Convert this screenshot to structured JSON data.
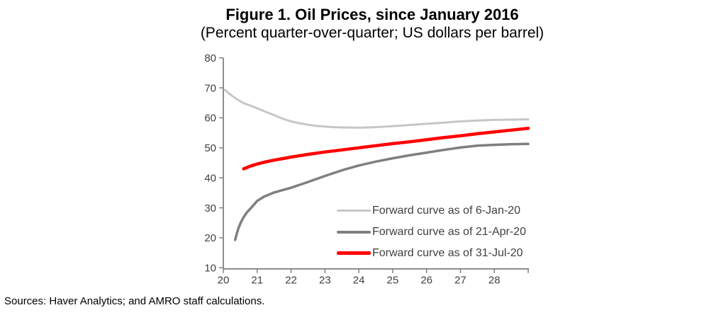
{
  "figure": {
    "title": "Figure 1. Oil Prices, since January 2016",
    "subtitle": "(Percent quarter-over-quarter; US dollars per barrel)",
    "sources": "Sources: Haver Analytics; and AMRO staff calculations."
  },
  "chart_data": {
    "type": "line",
    "title": "Figure 1. Oil Prices, since January 2016",
    "subtitle": "(Percent quarter-over-quarter; US dollars per barrel)",
    "xlabel": "",
    "ylabel": "",
    "xlim": [
      20,
      29
    ],
    "ylim": [
      10,
      80
    ],
    "x_ticks": [
      20,
      21,
      22,
      23,
      24,
      25,
      26,
      27,
      28
    ],
    "y_ticks": [
      10,
      20,
      30,
      40,
      50,
      60,
      70,
      80
    ],
    "x_axis_end_tick": 29,
    "grid": false,
    "legend_position": "inside-lower-right",
    "axis_color": "#808080",
    "tick_label_color": "#404040",
    "series": [
      {
        "name": "Forward curve as of 6-Jan-20",
        "color": "#c6c6c6",
        "points": [
          [
            20.05,
            69.3
          ],
          [
            20.2,
            67.8
          ],
          [
            20.4,
            66.2
          ],
          [
            20.6,
            64.9
          ],
          [
            20.8,
            64.1
          ],
          [
            21.0,
            63.2
          ],
          [
            21.25,
            62.0
          ],
          [
            21.5,
            60.9
          ],
          [
            21.75,
            59.7
          ],
          [
            22.0,
            58.8
          ],
          [
            22.25,
            58.2
          ],
          [
            22.5,
            57.7
          ],
          [
            22.75,
            57.3
          ],
          [
            23.0,
            57.1
          ],
          [
            23.25,
            56.9
          ],
          [
            23.5,
            56.8
          ],
          [
            24.0,
            56.7
          ],
          [
            24.5,
            56.9
          ],
          [
            25.0,
            57.2
          ],
          [
            25.5,
            57.6
          ],
          [
            26.0,
            58.0
          ],
          [
            26.5,
            58.4
          ],
          [
            27.0,
            58.8
          ],
          [
            27.5,
            59.1
          ],
          [
            28.0,
            59.3
          ],
          [
            28.5,
            59.4
          ],
          [
            29.0,
            59.5
          ]
        ]
      },
      {
        "name": "Forward curve as of 21-Apr-20",
        "color": "#7f7f7f",
        "points": [
          [
            20.35,
            19.3
          ],
          [
            20.4,
            21.5
          ],
          [
            20.45,
            23.3
          ],
          [
            20.52,
            25.2
          ],
          [
            20.6,
            26.9
          ],
          [
            20.7,
            28.5
          ],
          [
            20.82,
            30.0
          ],
          [
            21.0,
            32.3
          ],
          [
            21.2,
            33.7
          ],
          [
            21.5,
            35.1
          ],
          [
            21.75,
            35.9
          ],
          [
            22.0,
            36.7
          ],
          [
            22.5,
            38.6
          ],
          [
            23.0,
            40.6
          ],
          [
            23.5,
            42.5
          ],
          [
            24.0,
            44.1
          ],
          [
            24.5,
            45.4
          ],
          [
            25.0,
            46.5
          ],
          [
            25.5,
            47.5
          ],
          [
            26.0,
            48.4
          ],
          [
            26.5,
            49.3
          ],
          [
            27.0,
            50.1
          ],
          [
            27.5,
            50.7
          ],
          [
            28.0,
            51.0
          ],
          [
            28.5,
            51.2
          ],
          [
            29.0,
            51.3
          ]
        ]
      },
      {
        "name": "Forward curve as of 31-Jul-20",
        "color": "#ff0000",
        "points": [
          [
            20.6,
            43.0
          ],
          [
            20.8,
            43.9
          ],
          [
            21.0,
            44.6
          ],
          [
            21.25,
            45.3
          ],
          [
            21.5,
            45.9
          ],
          [
            21.75,
            46.4
          ],
          [
            22.0,
            46.9
          ],
          [
            22.5,
            47.8
          ],
          [
            23.0,
            48.6
          ],
          [
            23.5,
            49.3
          ],
          [
            24.0,
            50.0
          ],
          [
            24.5,
            50.7
          ],
          [
            25.0,
            51.4
          ],
          [
            25.5,
            52.0
          ],
          [
            26.0,
            52.7
          ],
          [
            26.5,
            53.4
          ],
          [
            27.0,
            54.0
          ],
          [
            27.5,
            54.7
          ],
          [
            28.0,
            55.3
          ],
          [
            28.5,
            55.9
          ],
          [
            29.0,
            56.5
          ]
        ]
      }
    ]
  }
}
